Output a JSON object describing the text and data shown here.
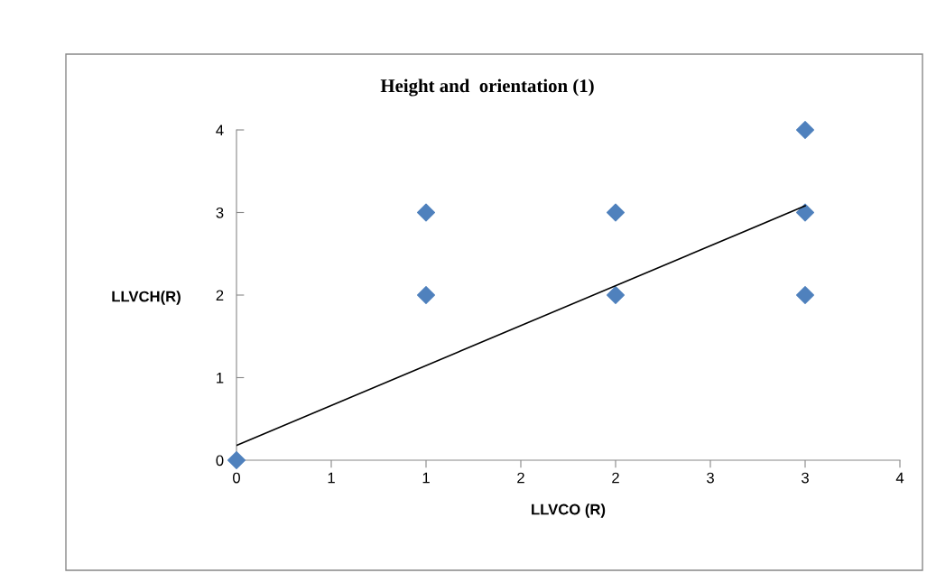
{
  "chart_data": {
    "type": "scatter",
    "title": "Height and  orientation (1)",
    "xlabel": "LLVCO (R)",
    "ylabel": "LLVCH(R)",
    "xlim": [
      0,
      3.5
    ],
    "xticks": [
      0,
      {
        "value": 0.5,
        "label": "1"
      },
      1,
      {
        "value": 1.5,
        "label": "2"
      },
      2,
      {
        "value": 2.5,
        "label": "3"
      },
      3,
      {
        "value": 3.5,
        "label": "4"
      }
    ],
    "ylim": [
      0,
      4
    ],
    "yticks": [
      0,
      1,
      2,
      3,
      4
    ],
    "grid": false,
    "legend": false,
    "marker": "diamond",
    "series": [
      {
        "color": "#4f81bd",
        "x": [
          0,
          1,
          1,
          2,
          2,
          3,
          3,
          3
        ],
        "values": [
          0,
          3,
          2,
          3,
          2,
          4,
          3,
          2
        ]
      },
      {
        "type": "line",
        "color": "#000000",
        "marker": "none",
        "x": [
          0,
          3
        ],
        "values": [
          0.18,
          3.08
        ]
      }
    ]
  }
}
